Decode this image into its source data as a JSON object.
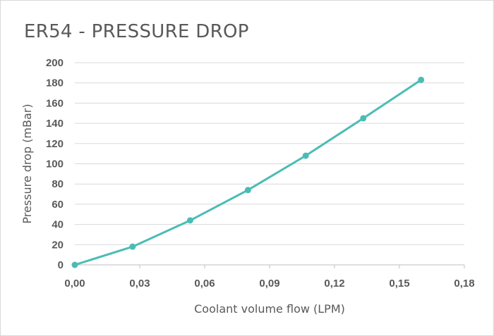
{
  "chart_data": {
    "type": "line",
    "title": "ER54 - PRESSURE DROP",
    "xlabel": "Coolant volume flow (LPM)",
    "ylabel": "Pressure drop (mBar)",
    "xlim": [
      0,
      0.18
    ],
    "ylim": [
      0,
      200
    ],
    "x_ticks": [
      "0,00",
      "0,03",
      "0,06",
      "0,09",
      "0,12",
      "0,15",
      "0,18"
    ],
    "y_ticks": [
      "0",
      "20",
      "40",
      "60",
      "80",
      "100",
      "120",
      "140",
      "160",
      "180",
      "200"
    ],
    "grid": true,
    "legend": "none",
    "series": [
      {
        "color": "#4bbcb5",
        "x": [
          0.0,
          0.0267,
          0.0533,
          0.08,
          0.1067,
          0.1333,
          0.16
        ],
        "y": [
          0,
          18,
          44,
          74,
          108,
          145,
          183
        ]
      }
    ]
  }
}
